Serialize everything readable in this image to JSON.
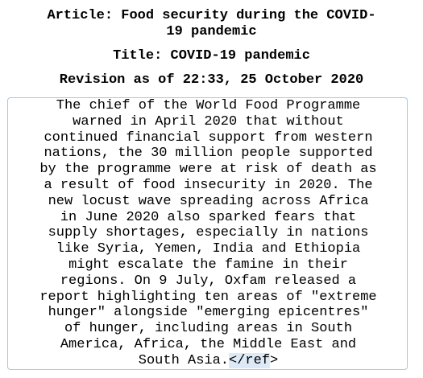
{
  "header": {
    "article_line1": "Article: Food security during the COVID-",
    "article_line2": "19 pandemic",
    "title": "Title: COVID-19 pandemic",
    "revision": "Revision as of 22:33, 25 October 2020"
  },
  "body": {
    "lines": [
      "The chief of the World Food Programme",
      "warned in April 2020 that without",
      "continued financial support from western",
      "nations, the 30 million people supported",
      "by the programme were at risk of death as",
      "a result of food insecurity in 2020. The",
      "new locust wave spreading across Africa",
      "in June 2020 also sparked fears that",
      "supply shortages, especially in nations",
      "like Syria, Yemen, India and Ethiopia",
      "might escalate the famine in their",
      "regions. On 9 July, Oxfam released a",
      "report highlighting ten areas of \"extreme",
      "hunger\" alongside \"emerging epicentres\"",
      "of hunger, including areas in South",
      "America, Africa, the Middle East and"
    ],
    "last_line_text": "South Asia.",
    "last_line_ref": "</ref",
    "last_line_end": ">"
  }
}
